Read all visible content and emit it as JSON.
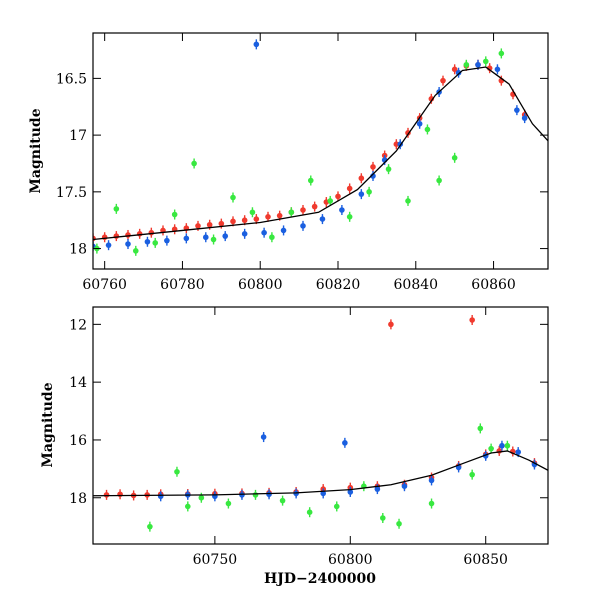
{
  "colors": {
    "red": "#f03a2e",
    "blue": "#1a5fe0",
    "green": "#38e840",
    "model": "#000000"
  },
  "chart_data": [
    {
      "type": "scatter",
      "panel": "top",
      "title": "",
      "xlabel": "",
      "ylabel": "Magnitude",
      "xlim": [
        60757,
        60874
      ],
      "ylim": [
        18.18,
        16.1
      ],
      "xticks": [
        60760,
        60780,
        60800,
        60820,
        60840,
        60860
      ],
      "yticks": [
        16.5,
        17,
        17.5,
        18
      ],
      "ytick_labels": [
        "16.5",
        "17",
        "17.5",
        "18"
      ],
      "grid": false,
      "series": [
        {
          "color": "red",
          "style": "points with error bars",
          "x": [
            60757,
            60760,
            60763,
            60766,
            60769,
            60772,
            60775,
            60778,
            60781,
            60784,
            60787,
            60790,
            60793,
            60796,
            60799,
            60802,
            60805,
            60808,
            60811,
            60814,
            60817,
            60820,
            60823,
            60826,
            60829,
            60832,
            60835,
            60838,
            60841,
            60844,
            60847,
            60850,
            60853,
            60856,
            60859,
            60862,
            60865,
            60868
          ],
          "y": [
            17.91,
            17.9,
            17.89,
            17.88,
            17.87,
            17.86,
            17.84,
            17.83,
            17.82,
            17.8,
            17.79,
            17.78,
            17.76,
            17.75,
            17.74,
            17.72,
            17.71,
            17.68,
            17.66,
            17.63,
            17.59,
            17.54,
            17.47,
            17.38,
            17.28,
            17.18,
            17.08,
            16.98,
            16.85,
            16.68,
            16.52,
            16.42,
            16.39,
            16.38,
            16.41,
            16.52,
            16.64,
            16.82
          ]
        },
        {
          "color": "blue",
          "style": "points with error bars",
          "x": [
            60757,
            60761,
            60766,
            60771,
            60776,
            60781,
            60786,
            60791,
            60796,
            60799,
            60801,
            60806,
            60811,
            60816,
            60821,
            60826,
            60829,
            60832,
            60836,
            60841,
            60846,
            60851,
            60856,
            60861,
            60866,
            60868
          ],
          "y": [
            17.98,
            17.97,
            17.96,
            17.94,
            17.93,
            17.91,
            17.9,
            17.89,
            17.87,
            16.2,
            17.86,
            17.84,
            17.8,
            17.74,
            17.66,
            17.52,
            17.36,
            17.22,
            17.08,
            16.9,
            16.62,
            16.45,
            16.38,
            16.42,
            16.78,
            16.85
          ]
        },
        {
          "color": "green",
          "style": "points with error bars",
          "x": [
            60758,
            60763,
            60768,
            60773,
            60778,
            60783,
            60788,
            60793,
            60798,
            60803,
            60808,
            60813,
            60818,
            60823,
            60828,
            60833,
            60838,
            60843,
            60846,
            60850,
            60853,
            60858,
            60862
          ],
          "y": [
            18.0,
            17.65,
            18.02,
            17.95,
            17.7,
            17.25,
            17.92,
            17.55,
            17.68,
            17.9,
            17.68,
            17.4,
            17.58,
            17.72,
            17.5,
            17.3,
            17.58,
            16.95,
            17.4,
            17.2,
            16.38,
            16.35,
            16.28
          ]
        },
        {
          "color": "model",
          "style": "line",
          "x": [
            60757,
            60780,
            60800,
            60815,
            60825,
            60835,
            60845,
            60852,
            60858,
            60864,
            60870,
            60874
          ],
          "y": [
            17.92,
            17.84,
            17.77,
            17.68,
            17.48,
            17.14,
            16.65,
            16.43,
            16.4,
            16.55,
            16.9,
            17.05
          ]
        }
      ]
    },
    {
      "type": "scatter",
      "panel": "bottom",
      "title": "",
      "xlabel": "HJD−2400000",
      "ylabel": "Magnitude",
      "xlim": [
        60705,
        60873
      ],
      "ylim": [
        19.6,
        11.4
      ],
      "xticks": [
        60750,
        60800,
        60850
      ],
      "yticks": [
        12,
        14,
        16,
        18
      ],
      "ytick_labels": [
        "12",
        "14",
        "16",
        "18"
      ],
      "grid": false,
      "series": [
        {
          "color": "red",
          "style": "points with error bars",
          "x": [
            60710,
            60715,
            60720,
            60725,
            60730,
            60740,
            60750,
            60760,
            60770,
            60780,
            60790,
            60800,
            60810,
            60815,
            60820,
            60830,
            60840,
            60845,
            60850,
            60855,
            60860,
            60868
          ],
          "y": [
            17.9,
            17.88,
            17.92,
            17.9,
            17.88,
            17.87,
            17.86,
            17.85,
            17.83,
            17.8,
            17.7,
            17.65,
            17.6,
            12.0,
            17.55,
            17.3,
            16.9,
            11.85,
            16.5,
            16.38,
            16.4,
            16.8
          ]
        },
        {
          "color": "blue",
          "style": "points with error bars",
          "x": [
            60730,
            60740,
            60750,
            60760,
            60768,
            60770,
            60780,
            60790,
            60798,
            60800,
            60810,
            60820,
            60830,
            60840,
            60850,
            60856,
            60862,
            60868
          ],
          "y": [
            17.95,
            17.9,
            17.95,
            17.9,
            15.9,
            17.88,
            17.85,
            17.85,
            16.1,
            17.8,
            17.7,
            17.6,
            17.4,
            16.95,
            16.55,
            16.2,
            16.42,
            16.85
          ]
        },
        {
          "color": "green",
          "style": "points with error bars",
          "x": [
            60726,
            60736,
            60740,
            60745,
            60755,
            60765,
            60775,
            60785,
            60795,
            60805,
            60812,
            60818,
            60830,
            60845,
            60848,
            60852,
            60858
          ],
          "y": [
            19.0,
            17.1,
            18.3,
            18.0,
            18.2,
            17.9,
            18.1,
            18.5,
            18.3,
            17.6,
            18.7,
            18.9,
            18.2,
            17.2,
            15.6,
            16.3,
            16.2
          ]
        },
        {
          "color": "model",
          "style": "line",
          "x": [
            60705,
            60750,
            60780,
            60800,
            60815,
            60830,
            60842,
            60852,
            60858,
            60866,
            60873
          ],
          "y": [
            17.93,
            17.9,
            17.83,
            17.72,
            17.55,
            17.22,
            16.8,
            16.45,
            16.38,
            16.7,
            17.05
          ]
        }
      ]
    }
  ]
}
